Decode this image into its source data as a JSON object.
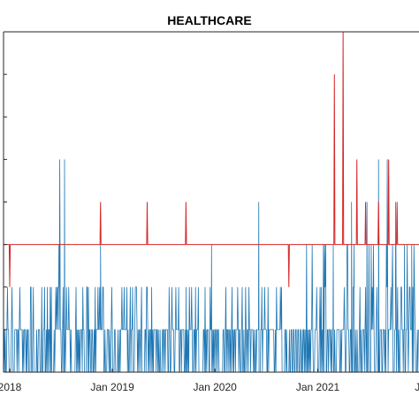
{
  "chart_data": {
    "type": "line",
    "title": "HEALTHCARE",
    "xlabel": "",
    "ylabel": "",
    "x_tick_labels": [
      "2018",
      "Jan 2019",
      "Jan 2020",
      "Jan 2021",
      "Ja"
    ],
    "x_tick_dates": [
      "2018-01-01",
      "2019-01-01",
      "2020-01-01",
      "2021-01-01",
      "2022-01-01"
    ],
    "xlim": [
      "2017-12-10",
      "2021-12-27"
    ],
    "ylim": [
      0,
      8
    ],
    "y_tick_values": [
      0,
      1,
      2,
      3,
      4,
      5,
      6,
      7,
      8
    ],
    "grid": false,
    "series": [
      {
        "color": "#d62728",
        "baseline": 3,
        "spikes": [
          {
            "x": "2018-01-01",
            "y": 2
          },
          {
            "x": "2018-11-20",
            "y": 4
          },
          {
            "x": "2019-05-05",
            "y": 4
          },
          {
            "x": "2019-09-20",
            "y": 4
          },
          {
            "x": "2020-09-20",
            "y": 2
          },
          {
            "x": "2021-03-01",
            "y": 7
          },
          {
            "x": "2021-04-01",
            "y": 8
          },
          {
            "x": "2021-05-20",
            "y": 5
          },
          {
            "x": "2021-06-20",
            "y": 4
          },
          {
            "x": "2021-08-05",
            "y": 4
          },
          {
            "x": "2021-09-10",
            "y": 5
          },
          {
            "x": "2021-10-10",
            "y": 4
          },
          {
            "x": "2021-11-20",
            "y": 3
          }
        ]
      },
      {
        "color": "#1f77b4",
        "segments": [
          {
            "from": "2017-12-10",
            "to": "2018-06-20",
            "levels": [
              1,
              2
            ]
          },
          {
            "from": "2018-06-20",
            "to": "2018-07-20",
            "levels": [
              1,
              2,
              3,
              5
            ]
          },
          {
            "from": "2018-07-20",
            "to": "2018-11-20",
            "levels": [
              1,
              2
            ]
          },
          {
            "from": "2018-11-20",
            "to": "2020-03-20",
            "levels": [
              1,
              2
            ]
          },
          {
            "from": "2020-03-20",
            "to": "2020-09-10",
            "levels": [
              1,
              2
            ]
          },
          {
            "from": "2020-09-10",
            "to": "2020-11-20",
            "levels": [
              0,
              1
            ]
          },
          {
            "from": "2020-11-20",
            "to": "2021-12-27",
            "levels": [
              1,
              2,
              3
            ]
          }
        ],
        "peaks": [
          {
            "x": "2018-07-15",
            "y": 5
          },
          {
            "x": "2018-06-25",
            "y": 3
          },
          {
            "x": "2018-11-20",
            "y": 3
          },
          {
            "x": "2019-09-20",
            "y": 2
          },
          {
            "x": "2019-12-20",
            "y": 3
          },
          {
            "x": "2020-06-05",
            "y": 4
          },
          {
            "x": "2021-02-25",
            "y": 3
          },
          {
            "x": "2021-05-01",
            "y": 4
          },
          {
            "x": "2021-05-10",
            "y": 3
          },
          {
            "x": "2021-06-25",
            "y": 4
          },
          {
            "x": "2021-08-05",
            "y": 5
          },
          {
            "x": "2021-09-05",
            "y": 5
          },
          {
            "x": "2021-10-05",
            "y": 4
          },
          {
            "x": "2021-11-05",
            "y": 3
          },
          {
            "x": "2021-12-01",
            "y": 3
          }
        ]
      }
    ]
  }
}
